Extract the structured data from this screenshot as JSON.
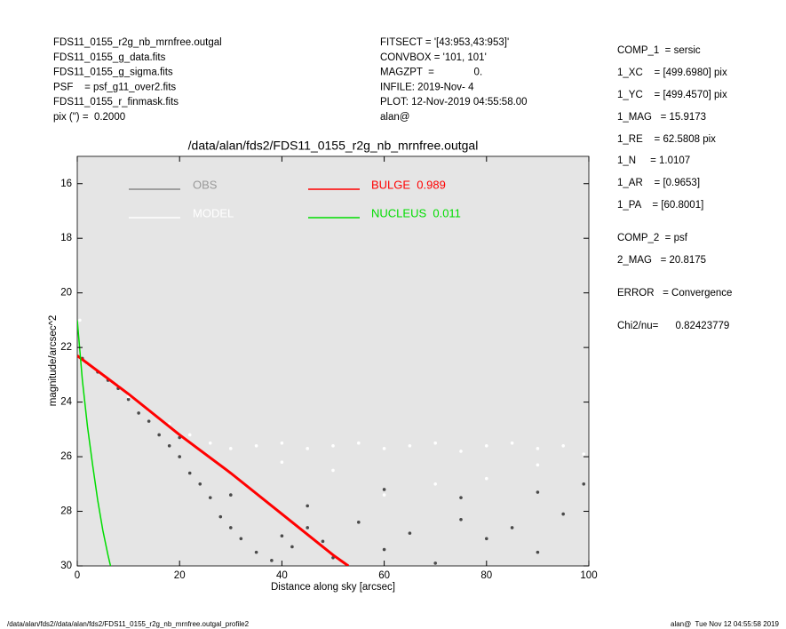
{
  "header": {
    "left": [
      "FDS11_0155_r2g_nb_mrnfree.outgal",
      "FDS11_0155_g_data.fits",
      "FDS11_0155_g_sigma.fits",
      "PSF    = psf_g11_over2.fits",
      "FDS11_0155_r_finmask.fits",
      "pix (\") =  0.2000"
    ],
    "middle": [
      "FITSECT = '[43:953,43:953]'",
      "CONVBOX = '101, 101'",
      "MAGZPT  =              0.",
      "INFILE: 2019-Nov- 4",
      "PLOT: 12-Nov-2019 04:55:58.00",
      "alan@"
    ],
    "right": [
      "COMP_1  = sersic",
      "1_XC    = [499.6980] pix",
      "1_YC    = [499.4570] pix",
      "1_MAG   = 15.9173",
      "1_RE    = 62.5808 pix",
      "1_N     = 1.0107",
      "1_AR    = [0.9653]",
      "1_PA    = [60.8001]",
      "COMP_2  = psf",
      "2_MAG   = 20.8175",
      "ERROR   = Convergence",
      "Chi2/nu=      0.82423779"
    ]
  },
  "footer": {
    "left": "/data/alan/fds2//data/alan/fds2/FDS11_0155_r2g_nb_mrnfree.outgal_profile2",
    "right": "alan@  Tue Nov 12 04:55:58 2019"
  },
  "chart_data": {
    "type": "scatter",
    "title": "/data/alan/fds2/FDS11_0155_r2g_nb_mrnfree.outgal",
    "xlabel": "Distance along sky [arcsec]",
    "ylabel": "magnitude/arcsec^2",
    "xlim": [
      0,
      100
    ],
    "ylim": [
      15,
      30
    ],
    "invert_y": true,
    "xticks": [
      0,
      20,
      40,
      60,
      80,
      100
    ],
    "yticks": [
      16,
      18,
      20,
      22,
      24,
      26,
      28,
      30
    ],
    "background": "#e5e5e5",
    "series": [
      {
        "name": "OBS",
        "kind": "points",
        "color": "#4a4a4a",
        "x": [
          1,
          2,
          4,
          6,
          8,
          10,
          12,
          14,
          16,
          18,
          20,
          22,
          24,
          26,
          28,
          30,
          32,
          35,
          38,
          40,
          42,
          45,
          48,
          50,
          55,
          60,
          65,
          70,
          75,
          80,
          85,
          90,
          95,
          99,
          30,
          45,
          60,
          75,
          90,
          20
        ],
        "values": [
          22.4,
          22.6,
          22.9,
          23.2,
          23.5,
          23.9,
          24.4,
          24.7,
          25.2,
          25.6,
          26.0,
          26.6,
          27.0,
          27.5,
          28.2,
          28.6,
          29.0,
          29.5,
          29.8,
          28.9,
          29.3,
          28.6,
          29.1,
          29.7,
          28.4,
          29.4,
          28.8,
          29.9,
          28.3,
          29.0,
          28.6,
          29.5,
          28.1,
          27.0,
          27.4,
          27.8,
          27.2,
          27.5,
          27.3,
          25.3
        ]
      },
      {
        "name": "MODEL",
        "kind": "points",
        "color": "#ffffff",
        "x": [
          0.5,
          2,
          5,
          8,
          10,
          14,
          18,
          22,
          26,
          30,
          35,
          40,
          45,
          50,
          55,
          60,
          65,
          70,
          75,
          80,
          85,
          90,
          95,
          99,
          50,
          70,
          90,
          60,
          80,
          40
        ],
        "values": [
          21.0,
          22.6,
          23.0,
          23.4,
          23.8,
          24.3,
          24.8,
          25.2,
          25.5,
          25.7,
          25.6,
          25.5,
          25.7,
          25.6,
          25.5,
          25.7,
          25.6,
          25.5,
          25.8,
          25.6,
          25.5,
          25.7,
          25.6,
          25.9,
          26.5,
          27.0,
          26.3,
          27.4,
          26.8,
          26.2
        ]
      },
      {
        "name": "BULGE  0.989",
        "kind": "line",
        "color": "#ff0000",
        "x": [
          0,
          10,
          20,
          30,
          40,
          50,
          53
        ],
        "values": [
          22.3,
          23.7,
          25.2,
          26.6,
          28.1,
          29.6,
          30.0
        ]
      },
      {
        "name": "NUCLEUS  0.011",
        "kind": "line",
        "color": "#00dd00",
        "x": [
          0,
          1,
          2,
          3,
          4,
          5,
          6,
          6.5
        ],
        "values": [
          21.0,
          23.2,
          24.9,
          26.3,
          27.6,
          28.7,
          29.6,
          30.0
        ]
      }
    ]
  }
}
